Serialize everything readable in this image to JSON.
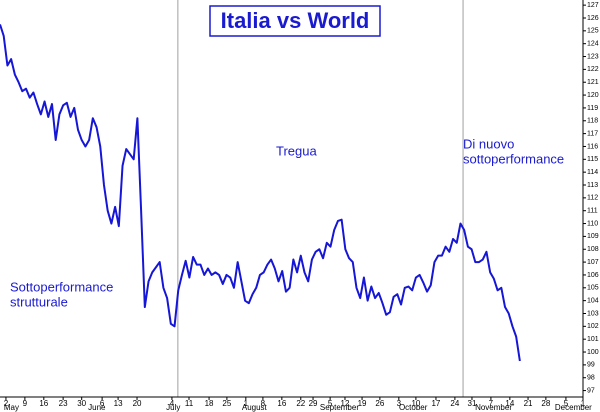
{
  "chart_data": {
    "type": "line",
    "title": "Italia vs World",
    "color": "#1616d6",
    "values": [
      125.5,
      124.6,
      122.3,
      122.8,
      121.6,
      121.0,
      120.3,
      120.5,
      119.8,
      120.2,
      119.3,
      118.5,
      119.5,
      118.3,
      119.3,
      116.5,
      118.5,
      119.2,
      119.4,
      118.3,
      119.0,
      117.3,
      116.5,
      116.0,
      116.5,
      118.2,
      117.5,
      116.0,
      113.0,
      111.0,
      110.0,
      111.3,
      109.8,
      114.5,
      115.8,
      115.4,
      115.0,
      118.2,
      111.0,
      103.5,
      105.5,
      106.2,
      106.6,
      107.0,
      105.0,
      104.2,
      102.2,
      102.0,
      104.8,
      106.0,
      107.1,
      105.8,
      107.4,
      106.8,
      106.8,
      106.0,
      106.5,
      106.0,
      106.2,
      106.0,
      105.3,
      106.0,
      105.8,
      105.0,
      107.0,
      105.5,
      104.0,
      103.8,
      104.5,
      105.0,
      106.0,
      106.2,
      106.8,
      107.2,
      106.5,
      105.5,
      106.3,
      104.7,
      105.0,
      107.2,
      106.2,
      107.5,
      106.2,
      105.5,
      107.2,
      107.8,
      108.0,
      107.3,
      108.5,
      108.2,
      109.5,
      110.2,
      110.3,
      108.0,
      107.3,
      107.0,
      105.0,
      104.2,
      105.8,
      104.0,
      105.1,
      104.2,
      104.6,
      103.8,
      102.9,
      103.1,
      104.3,
      104.5,
      103.7,
      105.0,
      105.1,
      104.8,
      105.8,
      106.0,
      105.4,
      104.7,
      105.2,
      107.0,
      107.5,
      107.5,
      108.2,
      107.8,
      108.8,
      108.5,
      110.0,
      109.5,
      108.2,
      108.0,
      107.0,
      107.0,
      107.2,
      107.8,
      106.2,
      105.7,
      104.8,
      105.0,
      103.5,
      103.0,
      102.0,
      101.2,
      99.3
    ],
    "xlim": [
      0,
      157
    ],
    "ylim": [
      96.5,
      127.4
    ],
    "yticks": [
      97,
      98,
      99,
      100,
      101,
      102,
      103,
      104,
      105,
      106,
      107,
      108,
      109,
      110,
      111,
      112,
      113,
      114,
      115,
      116,
      117,
      118,
      119,
      120,
      121,
      122,
      123,
      124,
      125,
      126,
      127
    ],
    "xticks": [
      {
        "value": 1.6,
        "label": "2"
      },
      {
        "value": 6.7,
        "label": "9"
      },
      {
        "value": 11.8,
        "label": "16"
      },
      {
        "value": 17,
        "label": "23"
      },
      {
        "value": 22,
        "label": "30"
      },
      {
        "value": 27.5,
        "label": "6"
      },
      {
        "value": 31.8,
        "label": "13"
      },
      {
        "value": 36.9,
        "label": "20"
      },
      {
        "value": 46.3,
        "label": "4"
      },
      {
        "value": 50.9,
        "label": "11"
      },
      {
        "value": 56.3,
        "label": "18"
      },
      {
        "value": 61.1,
        "label": "25"
      },
      {
        "value": 66.2,
        "label": "1"
      },
      {
        "value": 70.8,
        "label": "8"
      },
      {
        "value": 75.9,
        "label": "16"
      },
      {
        "value": 81,
        "label": "22"
      },
      {
        "value": 84.3,
        "label": "29"
      },
      {
        "value": 88.9,
        "label": "5"
      },
      {
        "value": 92.9,
        "label": "12"
      },
      {
        "value": 97.5,
        "label": "19"
      },
      {
        "value": 102.3,
        "label": "26"
      },
      {
        "value": 107.4,
        "label": "3"
      },
      {
        "value": 112,
        "label": "10"
      },
      {
        "value": 117.4,
        "label": "17"
      },
      {
        "value": 122.5,
        "label": "24"
      },
      {
        "value": 127.1,
        "label": "31"
      },
      {
        "value": 132.2,
        "label": "7"
      },
      {
        "value": 137.3,
        "label": "14"
      },
      {
        "value": 142.2,
        "label": "21"
      },
      {
        "value": 147,
        "label": "28"
      },
      {
        "value": 152.4,
        "label": "5"
      },
      {
        "value": 157,
        "label": "1"
      }
    ],
    "month_labels": [
      {
        "value": 0.5,
        "label": "May"
      },
      {
        "value": 23.2,
        "label": "June"
      },
      {
        "value": 44.2,
        "label": "July"
      },
      {
        "value": 64.6,
        "label": "August"
      },
      {
        "value": 85.6,
        "label": "September"
      },
      {
        "value": 106.9,
        "label": "October"
      },
      {
        "value": 127.4,
        "label": "November"
      },
      {
        "value": 148.9,
        "label": "December"
      }
    ],
    "dividers": [
      47.9,
      124.7
    ],
    "annotations": [
      [
        "Sottoperformance",
        "strutturale"
      ],
      [
        "Tregua"
      ],
      [
        "Di nuovo",
        "sottoperformance"
      ]
    ]
  }
}
